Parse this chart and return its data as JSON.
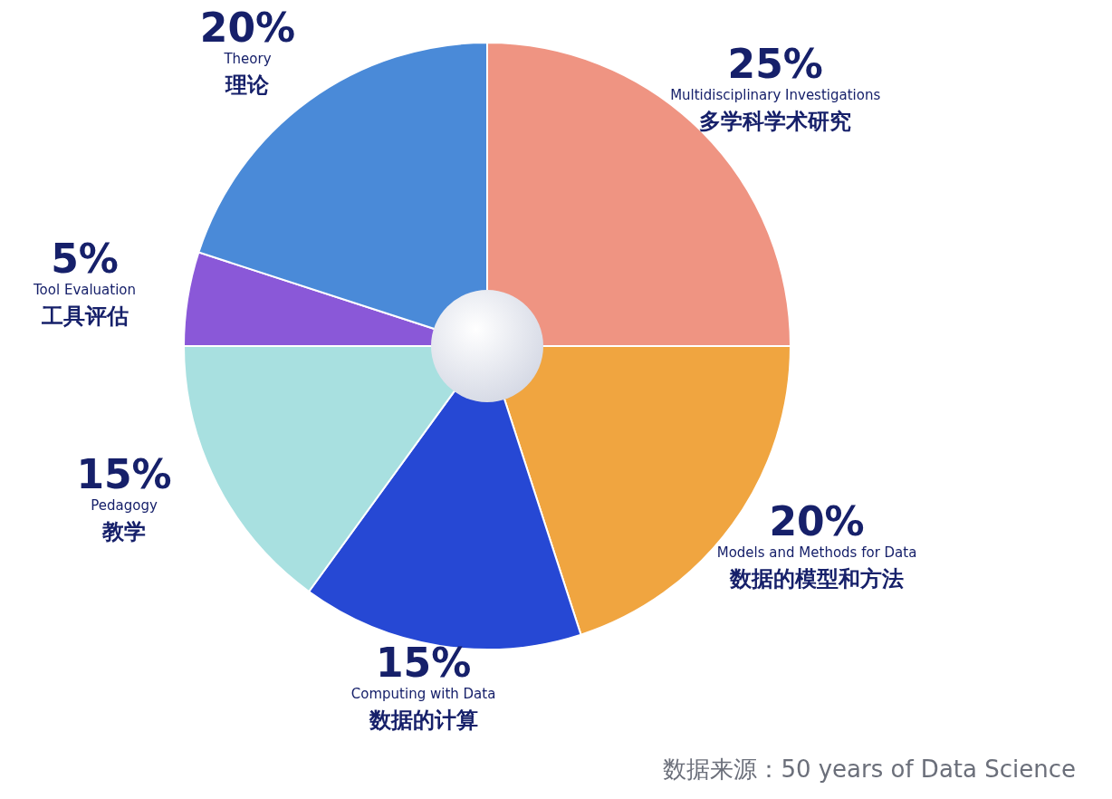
{
  "chart_data": {
    "type": "pie",
    "value_labels": [
      "25%",
      "20%",
      "15%",
      "15%",
      "5%",
      "20%"
    ],
    "categories": [
      "Multidisciplinary Investigations\n多学科学术研究",
      "Models and Methods for Data\n数据的模型和方法",
      "Computing with Data\n数据的计算",
      "Pedagogy\n教学",
      "Tool Evaluation\n工具评估",
      "Theory\n理论"
    ],
    "values": [
      25,
      20,
      15,
      15,
      5,
      20
    ],
    "colors": [
      "#ef9482",
      "#f0a540",
      "#2648d4",
      "#a8e0e0",
      "#8a58d8",
      "#4a8ad8"
    ],
    "annotations": [
      "数据来源：50 years of Data Science"
    ]
  }
}
